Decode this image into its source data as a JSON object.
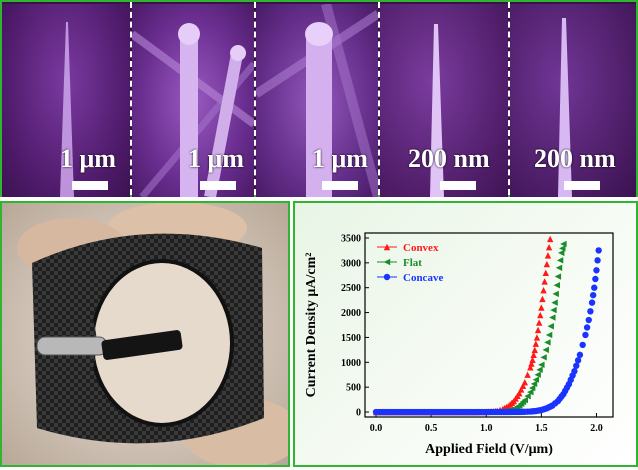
{
  "sem_panels": [
    {
      "scale_label": "1 μm"
    },
    {
      "scale_label": "1 μm"
    },
    {
      "scale_label": "1 μm"
    },
    {
      "scale_label": "200 nm"
    },
    {
      "scale_label": "200 nm"
    }
  ],
  "colors": {
    "frame": "#2fb52f",
    "sem_background": "#5a1f78",
    "convex": "#ff1a1a",
    "flat": "#1a8c2a",
    "concave": "#1a33ff"
  },
  "chart_data": {
    "type": "scatter",
    "xlabel": "Applied Field (V/μm)",
    "ylabel": "Current Density μA/cm²",
    "xlim": [
      -0.1,
      2.15
    ],
    "ylim": [
      -100,
      3600
    ],
    "x_ticks": [
      "0.0",
      "0.5",
      "1.0",
      "1.5",
      "2.0"
    ],
    "y_ticks": [
      "0",
      "500",
      "1000",
      "1500",
      "2000",
      "2500",
      "3000",
      "3500"
    ],
    "legend_position": "top-left",
    "series": [
      {
        "name": "Convex",
        "marker": "triangle-up",
        "color": "#ff1a1a",
        "x": [
          0.0,
          0.1,
          0.2,
          0.3,
          0.4,
          0.5,
          0.6,
          0.7,
          0.8,
          0.9,
          1.0,
          1.05,
          1.1,
          1.15,
          1.2,
          1.25,
          1.3,
          1.35,
          1.4,
          1.42,
          1.44,
          1.46,
          1.48,
          1.5,
          1.52,
          1.54,
          1.56,
          1.58
        ],
        "y": [
          0,
          0,
          0,
          0,
          0,
          0,
          0,
          0,
          0,
          0,
          3,
          10,
          25,
          60,
          120,
          220,
          380,
          600,
          900,
          1050,
          1250,
          1500,
          1800,
          2100,
          2450,
          2800,
          3150,
          3480
        ]
      },
      {
        "name": "Flat",
        "marker": "triangle-left",
        "color": "#1a8c2a",
        "x": [
          0.0,
          0.1,
          0.2,
          0.3,
          0.4,
          0.5,
          0.6,
          0.7,
          0.8,
          0.9,
          1.0,
          1.1,
          1.15,
          1.2,
          1.25,
          1.3,
          1.35,
          1.4,
          1.45,
          1.5,
          1.54,
          1.57,
          1.6,
          1.62,
          1.64,
          1.66,
          1.68,
          1.7
        ],
        "y": [
          0,
          0,
          0,
          0,
          0,
          0,
          0,
          0,
          0,
          0,
          0,
          3,
          10,
          25,
          60,
          130,
          240,
          400,
          650,
          950,
          1250,
          1550,
          1900,
          2200,
          2550,
          2900,
          3200,
          3380
        ]
      },
      {
        "name": "Concave",
        "marker": "circle",
        "color": "#1a33ff",
        "x": [
          0.0,
          0.1,
          0.2,
          0.3,
          0.4,
          0.5,
          0.6,
          0.7,
          0.8,
          0.9,
          1.0,
          1.1,
          1.2,
          1.3,
          1.35,
          1.4,
          1.45,
          1.5,
          1.55,
          1.6,
          1.65,
          1.7,
          1.75,
          1.8,
          1.85,
          1.9,
          1.93,
          1.96,
          1.98,
          2.0,
          2.02
        ],
        "y": [
          0,
          0,
          0,
          0,
          0,
          0,
          0,
          0,
          0,
          0,
          0,
          0,
          0,
          2,
          5,
          10,
          20,
          40,
          75,
          130,
          220,
          360,
          560,
          820,
          1150,
          1550,
          1850,
          2200,
          2500,
          2850,
          3250
        ]
      }
    ]
  }
}
